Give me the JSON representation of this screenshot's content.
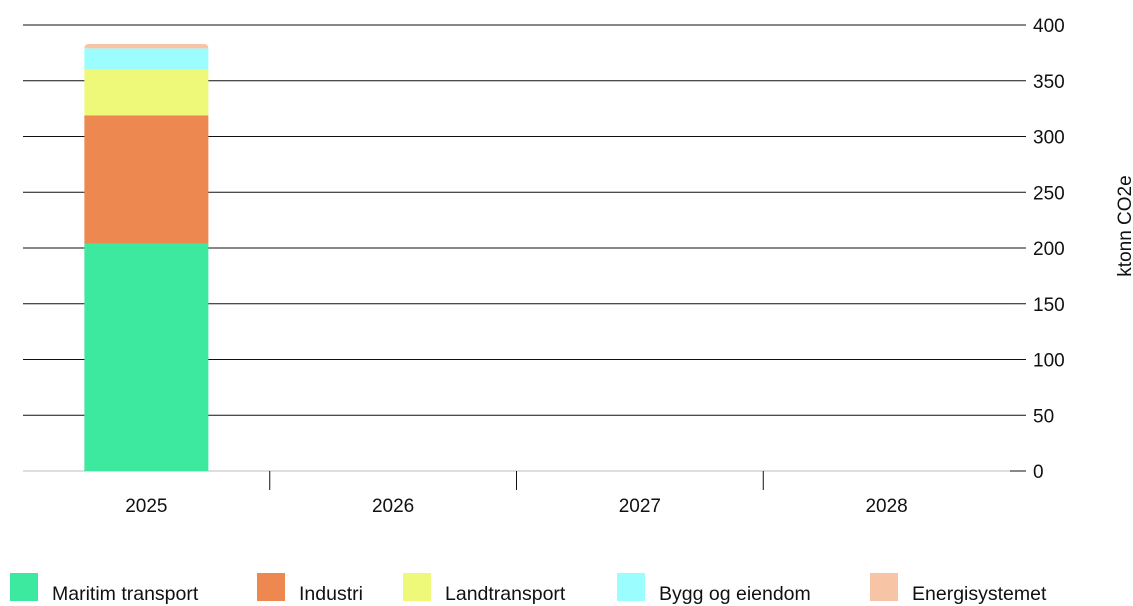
{
  "chart_data": {
    "type": "bar",
    "stacked": true,
    "categories": [
      "2025",
      "2026",
      "2027",
      "2028"
    ],
    "series": [
      {
        "name": "Maritim transport",
        "color": "#3de89f",
        "values": [
          204,
          0,
          0,
          0
        ]
      },
      {
        "name": "Industri",
        "color": "#ed8850",
        "values": [
          115,
          0,
          0,
          0
        ]
      },
      {
        "name": "Landtransport",
        "color": "#eef97a",
        "values": [
          41,
          0,
          0,
          0
        ]
      },
      {
        "name": "Bygg og eiendom",
        "color": "#9bfdfd",
        "values": [
          19,
          0,
          0,
          0
        ]
      },
      {
        "name": "Energisystemet",
        "color": "#f7c4a6",
        "values": [
          4,
          0,
          0,
          0
        ]
      }
    ],
    "title": "",
    "xlabel": "",
    "ylabel": "ktonn CO2e",
    "ylim": [
      0,
      400
    ],
    "yticks": [
      "0",
      "50",
      "100",
      "150",
      "200",
      "250",
      "300",
      "350",
      "400"
    ],
    "y_axis_side": "right",
    "grid": true,
    "legend_position": "bottom"
  }
}
